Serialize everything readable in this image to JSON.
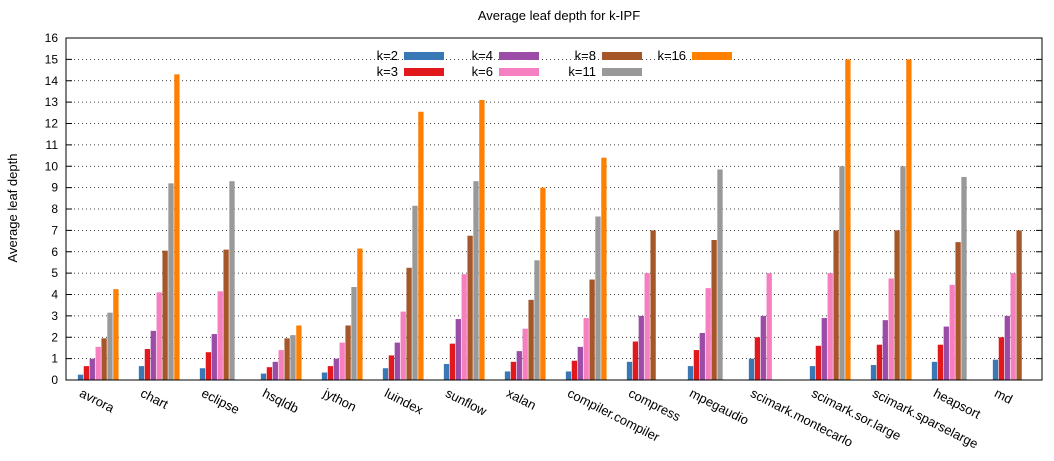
{
  "chart_data": {
    "type": "bar",
    "title": "Average leaf depth for k-IPF",
    "xlabel": "",
    "ylabel": "Average leaf depth",
    "ylim": [
      0,
      16
    ],
    "yticks": [
      0,
      1,
      2,
      3,
      4,
      5,
      6,
      7,
      8,
      9,
      10,
      11,
      12,
      13,
      14,
      15,
      16
    ],
    "grid": true,
    "legend_position": "top-center",
    "categories": [
      "avrora",
      "chart",
      "eclipse",
      "hsqldb",
      "jython",
      "luindex",
      "sunflow",
      "xalan",
      "compiler.compiler",
      "compress",
      "mpegaudio",
      "scimark.montecarlo",
      "scimark.sor.large",
      "scimark.sparselarge",
      "heapsort",
      "md"
    ],
    "series": [
      {
        "name": "k=2",
        "color": "#3a78b5",
        "values": [
          0.25,
          0.65,
          0.55,
          0.3,
          0.35,
          0.55,
          0.75,
          0.4,
          0.4,
          0.85,
          0.65,
          1.0,
          0.65,
          0.7,
          0.85,
          0.95
        ]
      },
      {
        "name": "k=3",
        "color": "#e2191c",
        "values": [
          0.65,
          1.45,
          1.3,
          0.6,
          0.65,
          1.15,
          1.7,
          0.85,
          0.9,
          1.8,
          1.4,
          2.0,
          1.6,
          1.65,
          1.65,
          2.0
        ]
      },
      {
        "name": "k=4",
        "color": "#9a4ca6",
        "values": [
          1.0,
          2.3,
          2.15,
          0.85,
          1.0,
          1.75,
          2.85,
          1.35,
          1.55,
          3.0,
          2.2,
          3.0,
          2.9,
          2.8,
          2.5,
          3.0
        ]
      },
      {
        "name": "k=6",
        "color": "#f57fbf",
        "values": [
          1.55,
          4.1,
          4.15,
          1.4,
          1.75,
          3.2,
          4.95,
          2.4,
          2.9,
          5.0,
          4.3,
          5.0,
          5.0,
          4.75,
          4.45,
          5.0
        ]
      },
      {
        "name": "k=8",
        "color": "#a65729",
        "values": [
          1.95,
          6.05,
          6.1,
          1.95,
          2.55,
          5.25,
          6.75,
          3.75,
          4.7,
          7.0,
          6.55,
          0,
          7.0,
          7.0,
          6.45,
          7.0
        ]
      },
      {
        "name": "k=11",
        "color": "#999999",
        "values": [
          3.15,
          9.2,
          9.3,
          2.1,
          4.35,
          8.15,
          9.3,
          5.6,
          7.65,
          0,
          9.85,
          0,
          10.0,
          10.0,
          9.5,
          0
        ]
      },
      {
        "name": "k=16",
        "color": "#ff7f00",
        "values": [
          4.25,
          14.3,
          0,
          2.55,
          6.15,
          12.55,
          13.1,
          9.0,
          10.4,
          0,
          0,
          0,
          15.0,
          15.0,
          0,
          0
        ]
      }
    ]
  }
}
